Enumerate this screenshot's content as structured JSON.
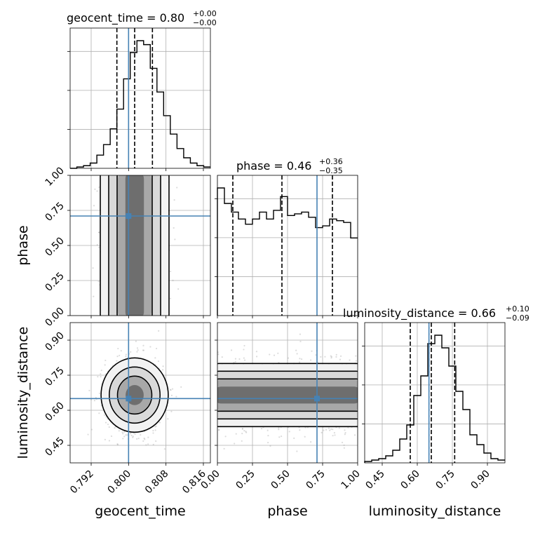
{
  "chart_data": {
    "type": "corner",
    "parameters": [
      "geocent_time",
      "phase",
      "luminosity_distance"
    ],
    "titles": [
      {
        "param": "geocent_time",
        "base": "geocent_time = 0.80",
        "plus": "+0.00",
        "minus": "−0.00"
      },
      {
        "param": "phase",
        "base": "phase = 0.46",
        "plus": "+0.36",
        "minus": "−0.35"
      },
      {
        "param": "luminosity_distance",
        "base": "luminosity_distance = 0.66",
        "plus": "+0.10",
        "minus": "−0.09"
      }
    ],
    "axis_labels": {
      "x": [
        "geocent_time",
        "phase",
        "luminosity_distance"
      ],
      "y": [
        "phase",
        "luminosity_distance"
      ]
    },
    "ranges": {
      "geocent_time": [
        0.7875,
        0.8175
      ],
      "phase": [
        0.0,
        1.0
      ],
      "luminosity_distance": [
        0.375,
        0.975
      ]
    },
    "ticks": {
      "geocent_time": [
        "0.792",
        "0.800",
        "0.808",
        "0.816"
      ],
      "phase": [
        "0.00",
        "0.25",
        "0.50",
        "0.75",
        "1.00"
      ],
      "luminosity_distance": [
        "0.45",
        "0.60",
        "0.75",
        "0.90"
      ]
    },
    "truths": {
      "geocent_time": 0.8,
      "phase": 0.71,
      "luminosity_distance": 0.65
    },
    "quantiles": {
      "geocent_time": [
        0.7975,
        0.8013,
        0.8051
      ],
      "phase": [
        0.11,
        0.46,
        0.82
      ],
      "luminosity_distance": [
        0.57,
        0.66,
        0.76
      ]
    },
    "histograms": {
      "geocent_time": {
        "edges_range": [
          0.7875,
          0.8175
        ],
        "counts": [
          0.0,
          1,
          2,
          4,
          10,
          18,
          30,
          45,
          68,
          88,
          97,
          94,
          76,
          58,
          40,
          26,
          15,
          8,
          4,
          2,
          1
        ]
      },
      "phase": {
        "counts": [
          74,
          65,
          60,
          56,
          53,
          56,
          60,
          56,
          61,
          69,
          58,
          59,
          60,
          57,
          51,
          52,
          56,
          55,
          54,
          45
        ]
      },
      "luminosity_distance": {
        "edges_range": [
          0.375,
          0.975
        ],
        "counts": [
          1,
          2,
          3,
          5,
          9,
          17,
          27,
          48,
          62,
          85,
          91,
          82,
          69,
          51,
          38,
          20,
          13,
          7,
          3,
          2
        ]
      }
    },
    "grid": true
  }
}
